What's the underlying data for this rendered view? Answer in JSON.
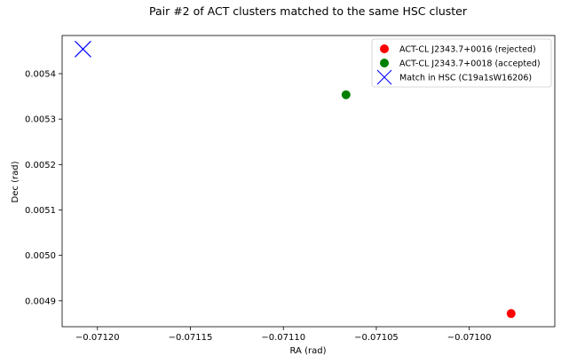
{
  "chart_data": {
    "type": "scatter",
    "title": "Pair #2 of ACT clusters matched to the same HSC cluster",
    "xlabel": "RA (rad)",
    "ylabel": "Dec (rad)",
    "xlim": [
      -0.071219,
      -0.070954
    ],
    "ylim": [
      0.004843,
      0.005484
    ],
    "xticks": [
      -0.0712,
      -0.07115,
      -0.0711,
      -0.07105,
      -0.071
    ],
    "xtick_labels": [
      "−0.07120",
      "−0.07115",
      "−0.07110",
      "−0.07105",
      "−0.07100"
    ],
    "yticks": [
      0.0049,
      0.005,
      0.0051,
      0.0052,
      0.0053,
      0.0054
    ],
    "ytick_labels": [
      "0.0049",
      "0.0050",
      "0.0051",
      "0.0052",
      "0.0053",
      "0.0054"
    ],
    "grid": false,
    "legend_position": "top-right",
    "series": [
      {
        "name": "ACT-CL J2343.7+0016 (rejected)",
        "marker": "circle",
        "color": "#ff0000",
        "points": [
          {
            "x": -0.0709775,
            "y": 0.004872
          }
        ]
      },
      {
        "name": "ACT-CL J2343.7+0018 (accepted)",
        "marker": "circle",
        "color": "#008000",
        "points": [
          {
            "x": -0.0710663,
            "y": 0.0053535
          }
        ]
      },
      {
        "name": "Match in HSC (C19a1sW16206)",
        "marker": "x",
        "color": "#0000ff",
        "points": [
          {
            "x": -0.0712078,
            "y": 0.005454
          }
        ]
      }
    ]
  }
}
